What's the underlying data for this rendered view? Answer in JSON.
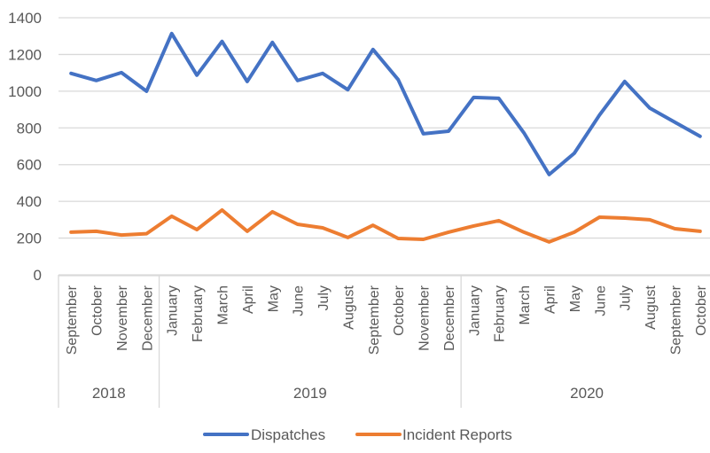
{
  "chart_data": {
    "type": "line",
    "title": "",
    "xlabel": "",
    "ylabel": "",
    "ylim": [
      0,
      1400
    ],
    "yticks": [
      0,
      200,
      400,
      600,
      800,
      1000,
      1200,
      1400
    ],
    "grid": true,
    "legend_position": "bottom",
    "categories": [
      "September",
      "October",
      "November",
      "December",
      "January",
      "February",
      "March",
      "April",
      "May",
      "June",
      "July",
      "August",
      "September",
      "October",
      "November",
      "December",
      "January",
      "February",
      "March",
      "April",
      "May",
      "June",
      "July",
      "August",
      "September",
      "October"
    ],
    "groups": [
      {
        "label": "2018",
        "count": 4
      },
      {
        "label": "2019",
        "count": 12
      },
      {
        "label": "2020",
        "count": 10
      }
    ],
    "series": [
      {
        "name": "Dispatches",
        "color": "#4472C4",
        "values": [
          1097,
          1058,
          1101,
          1000,
          1314,
          1087,
          1271,
          1053,
          1266,
          1058,
          1097,
          1008,
          1227,
          1063,
          768,
          782,
          966,
          961,
          773,
          546,
          662,
          870,
          1053,
          908,
          831,
          754
        ]
      },
      {
        "name": "Incident Reports",
        "color": "#ED7D31",
        "values": [
          232,
          237,
          217,
          224,
          319,
          246,
          353,
          237,
          343,
          275,
          256,
          203,
          270,
          198,
          193,
          232,
          266,
          295,
          232,
          179,
          232,
          314,
          309,
          300,
          251,
          237
        ]
      }
    ]
  }
}
